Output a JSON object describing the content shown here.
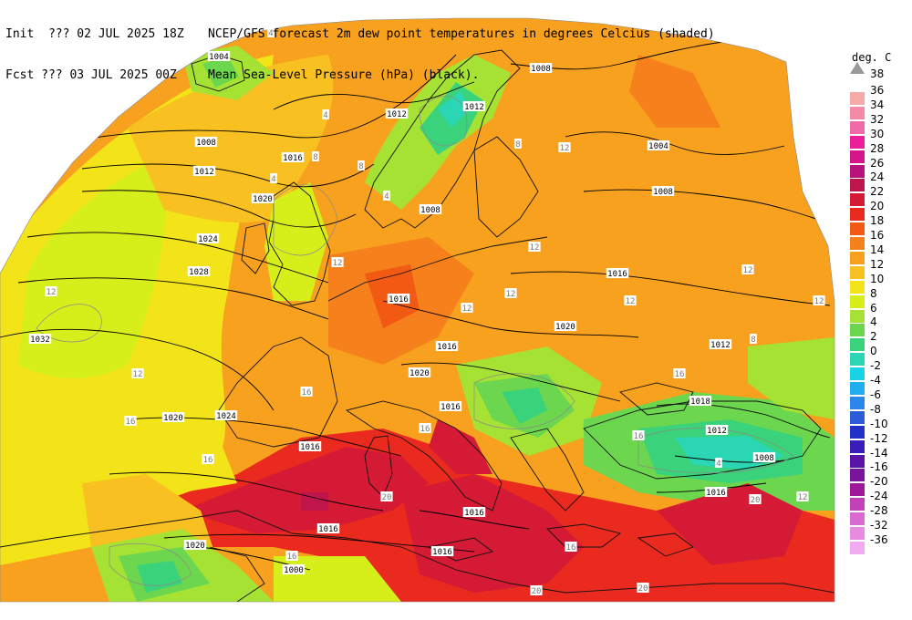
{
  "header": {
    "line1_left": "Init  ??? 02 JUL 2025 18Z",
    "line1_right": "NCEP/GFS forecast 2m dew point temperatures in degrees Celcius (shaded)",
    "line2_left": "Fcst ??? 03 JUL 2025 00Z",
    "line2_right": "Mean Sea-Level Pressure (hPa) (black)."
  },
  "legend": {
    "title": "deg. C",
    "top_value": "38",
    "items": [
      {
        "label": "36",
        "color": "#f7a8a8"
      },
      {
        "label": "34",
        "color": "#f48aa8"
      },
      {
        "label": "32",
        "color": "#f06aa8"
      },
      {
        "label": "30",
        "color": "#ec1f9a"
      },
      {
        "label": "28",
        "color": "#d7158b"
      },
      {
        "label": "26",
        "color": "#b8137a"
      },
      {
        "label": "24",
        "color": "#c0154a"
      },
      {
        "label": "22",
        "color": "#d41a34"
      },
      {
        "label": "20",
        "color": "#ea2a1e"
      },
      {
        "label": "18",
        "color": "#f25a14"
      },
      {
        "label": "16",
        "color": "#f5801c"
      },
      {
        "label": "14",
        "color": "#f7a11e"
      },
      {
        "label": "12",
        "color": "#f8c020"
      },
      {
        "label": "10",
        "color": "#f2e418"
      },
      {
        "label": "8",
        "color": "#d6ee1a"
      },
      {
        "label": "6",
        "color": "#a6e234"
      },
      {
        "label": "4",
        "color": "#6cd64e"
      },
      {
        "label": "2",
        "color": "#3ad27a"
      },
      {
        "label": "0",
        "color": "#2ad6b4"
      },
      {
        "label": "-2",
        "color": "#18d2e6"
      },
      {
        "label": "-4",
        "color": "#20aef0"
      },
      {
        "label": "-6",
        "color": "#2a86ea"
      },
      {
        "label": "-8",
        "color": "#2a5cd8"
      },
      {
        "label": "-10",
        "color": "#2030c8"
      },
      {
        "label": "-12",
        "color": "#3a1cb8"
      },
      {
        "label": "-14",
        "color": "#5a14a8"
      },
      {
        "label": "-16",
        "color": "#7a149a"
      },
      {
        "label": "-20",
        "color": "#a0189a"
      },
      {
        "label": "-24",
        "color": "#c240b8"
      },
      {
        "label": "-28",
        "color": "#d86ad0"
      },
      {
        "label": "-32",
        "color": "#e88ae0"
      },
      {
        "label": "-36",
        "color": "#f2aaf0"
      }
    ]
  },
  "isobar_labels": [
    "1004",
    "1012",
    "1008",
    "1012",
    "1016",
    "1020",
    "1024",
    "1028",
    "1032",
    "1008",
    "1012",
    "1008",
    "1004",
    "1008",
    "1016",
    "1016",
    "1016",
    "1020",
    "1020",
    "1024",
    "1020",
    "1012",
    "1016",
    "1018",
    "1016",
    "1012",
    "1008",
    "1016",
    "1016",
    "1016",
    "1016",
    "1020",
    "1000"
  ],
  "dewpoint_labels": [
    "4",
    "4",
    "4",
    "8",
    "8",
    "4",
    "8",
    "12",
    "12",
    "12",
    "12",
    "12",
    "12",
    "12",
    "12",
    "16",
    "16",
    "16",
    "16",
    "16",
    "16",
    "20",
    "20",
    "20",
    "20",
    "12",
    "12",
    "8",
    "4",
    "12",
    "16",
    "16"
  ]
}
